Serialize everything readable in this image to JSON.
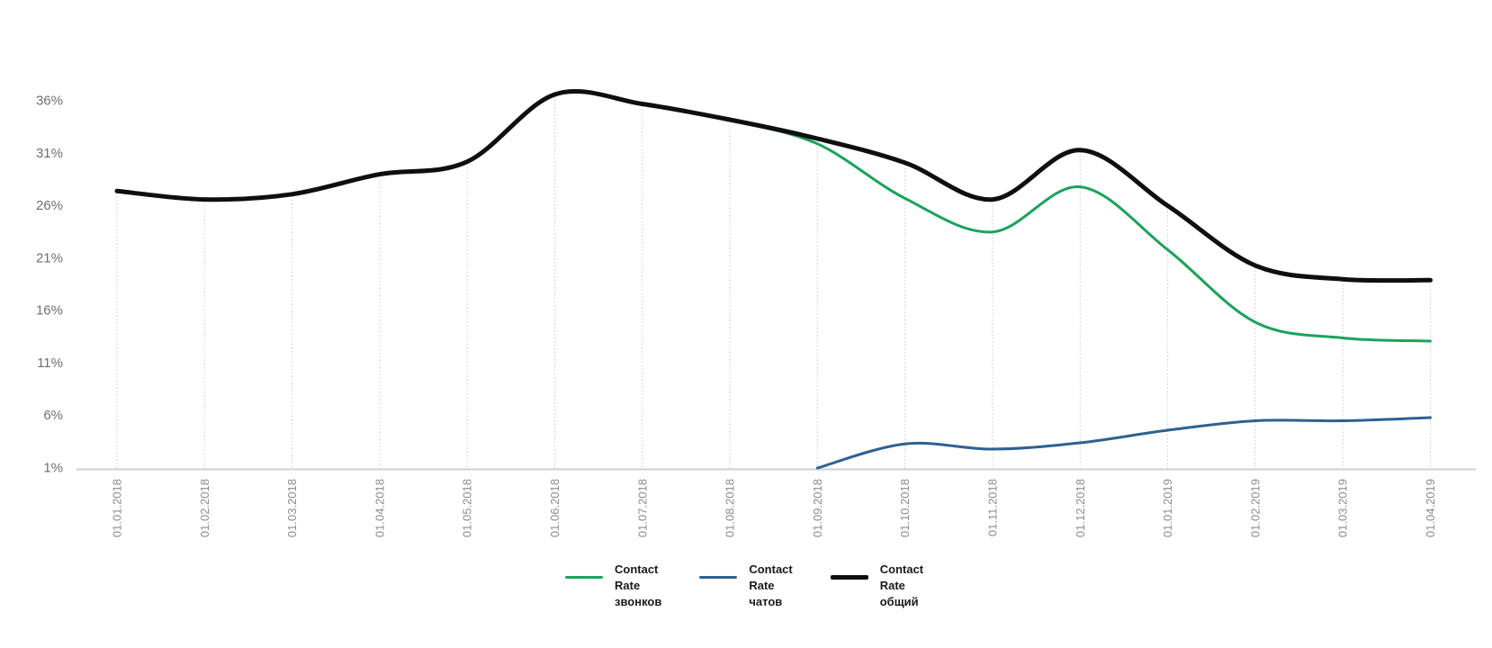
{
  "chart_data": {
    "type": "line",
    "categories": [
      "01.01.2018",
      "01.02.2018",
      "01.03.2018",
      "01.04.2018",
      "01.05.2018",
      "01.06.2018",
      "01.07.2018",
      "01.08.2018",
      "01.09.2018",
      "01.10.2018",
      "01.11.2018",
      "01.12.2018",
      "01.01.2019",
      "01.02.2019",
      "01.03.2019",
      "01.04.2019"
    ],
    "series": [
      {
        "name": "Contact Rate звонков",
        "legend_lines": [
          "Contact",
          "Rate",
          "звонков"
        ],
        "color": "#1aa35c",
        "line_width": 3,
        "values": [
          null,
          null,
          null,
          null,
          null,
          null,
          null,
          34.2,
          31.9,
          26.7,
          23.5,
          27.8,
          21.8,
          14.9,
          13.4,
          13.1
        ]
      },
      {
        "name": "Contact Rate чатов",
        "legend_lines": [
          "Contact",
          "Rate",
          "чатов"
        ],
        "color": "#2d6191",
        "line_width": 3,
        "values": [
          null,
          null,
          null,
          null,
          null,
          null,
          null,
          null,
          1.0,
          3.3,
          2.8,
          3.4,
          4.6,
          5.5,
          5.5,
          5.8
        ]
      },
      {
        "name": "Contact Rate общий",
        "legend_lines": [
          "Contact",
          "Rate",
          "общий"
        ],
        "color": "#0f0f0f",
        "line_width": 5,
        "values": [
          27.4,
          26.6,
          27.1,
          29.0,
          30.2,
          36.6,
          35.7,
          34.2,
          32.4,
          30.1,
          26.6,
          31.3,
          26.0,
          20.3,
          19.0,
          18.9
        ]
      }
    ],
    "title": "",
    "xlabel": "",
    "ylabel": "",
    "ylim": [
      1,
      36
    ],
    "yticks": [
      36,
      31,
      26,
      21,
      16,
      11,
      6,
      1
    ],
    "y_tick_labels": [
      "36%",
      "31%",
      "26%",
      "21%",
      "16%",
      "11%",
      "6%",
      "1%"
    ],
    "grid": "vertical-droplines-dotted",
    "legend_position": "bottom-center",
    "colors": {
      "axis_line": "#cfcfcf",
      "dropline": "#c9c9c9",
      "y_tick_text": "#6f6f6f",
      "x_tick_text": "#8c8c8c",
      "background": "#ffffff"
    }
  }
}
